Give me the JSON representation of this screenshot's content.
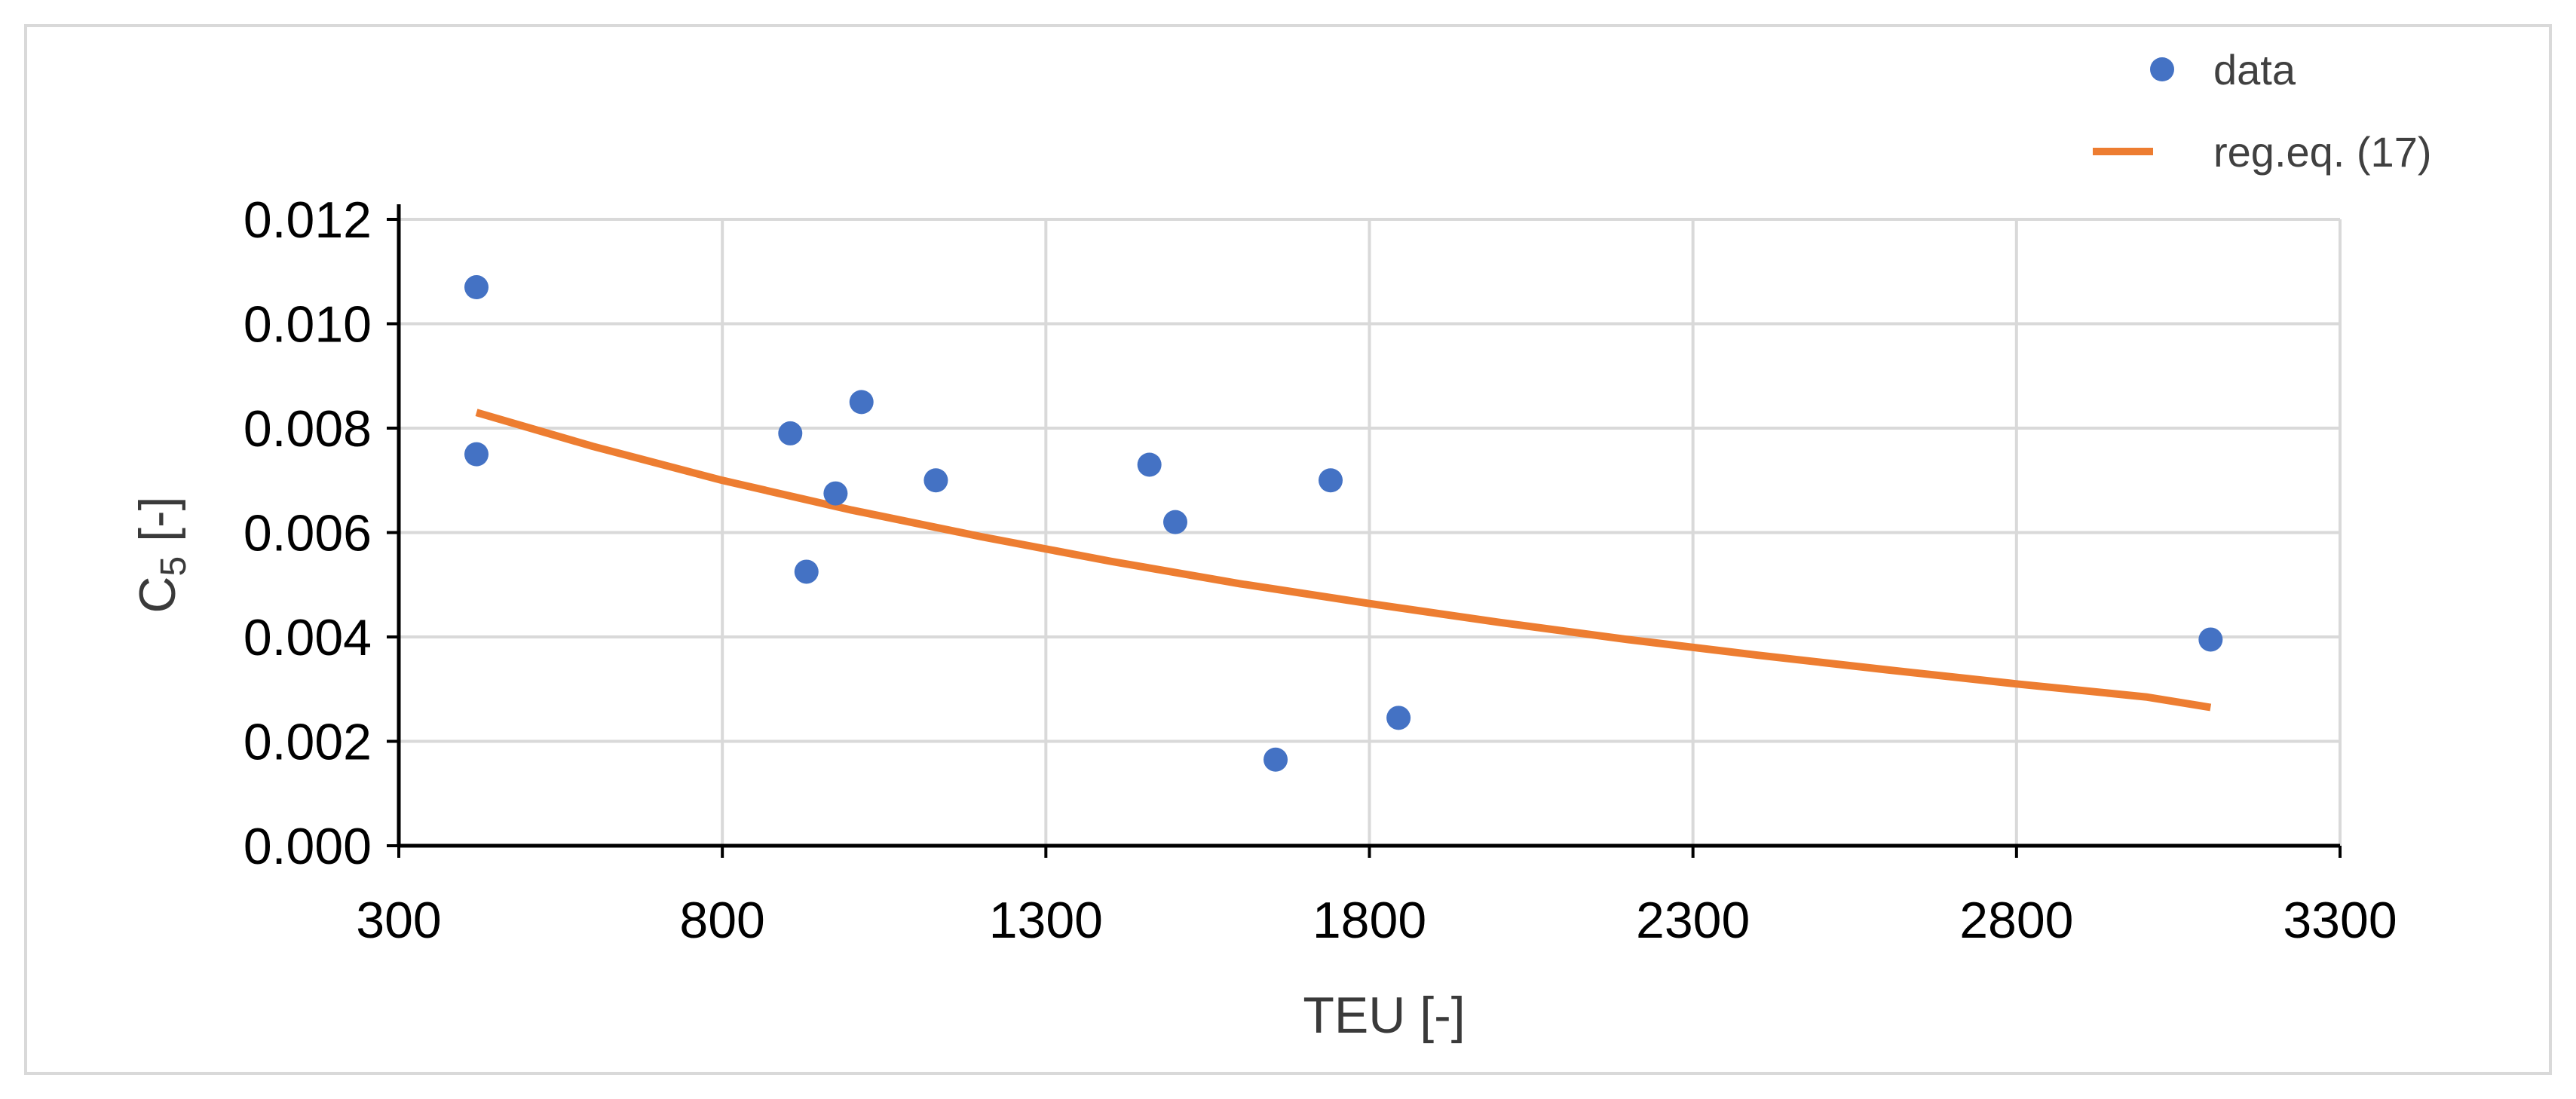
{
  "chart_data": {
    "type": "scatter",
    "xlabel": "TEU [-]",
    "ylabel_main": "C",
    "ylabel_sub": "5",
    "ylabel_tail": " [-]",
    "xlim": [
      300,
      3300
    ],
    "ylim": [
      0.0,
      0.012
    ],
    "xticks": [
      "300",
      "800",
      "1300",
      "1800",
      "2300",
      "2800",
      "3300"
    ],
    "yticks": [
      "0.000",
      "0.002",
      "0.004",
      "0.006",
      "0.008",
      "0.010",
      "0.012"
    ],
    "grid": true,
    "legend_position": "top-right",
    "colors": {
      "data": "#4472c4",
      "regression": "#ed7d31",
      "grid": "#d9d9d9",
      "axis": "#000000"
    },
    "series": [
      {
        "name": "data",
        "kind": "scatter",
        "points": [
          [
            420,
            0.0107
          ],
          [
            420,
            0.0075
          ],
          [
            905,
            0.0079
          ],
          [
            930,
            0.00525
          ],
          [
            975,
            0.00675
          ],
          [
            1015,
            0.0085
          ],
          [
            1130,
            0.007
          ],
          [
            1460,
            0.0073
          ],
          [
            1500,
            0.0062
          ],
          [
            1655,
            0.00165
          ],
          [
            1740,
            0.007
          ],
          [
            1845,
            0.00245
          ],
          [
            3100,
            0.00395
          ]
        ]
      },
      {
        "name": "reg.eq. (17)",
        "kind": "line",
        "points": [
          [
            420,
            0.0083
          ],
          [
            600,
            0.00765
          ],
          [
            800,
            0.007
          ],
          [
            1000,
            0.00643
          ],
          [
            1200,
            0.00592
          ],
          [
            1400,
            0.00545
          ],
          [
            1600,
            0.00502
          ],
          [
            1800,
            0.00464
          ],
          [
            2000,
            0.00428
          ],
          [
            2200,
            0.00395
          ],
          [
            2400,
            0.00365
          ],
          [
            2600,
            0.00337
          ],
          [
            2800,
            0.0031
          ],
          [
            3000,
            0.00285
          ],
          [
            3100,
            0.00265
          ]
        ]
      }
    ]
  }
}
